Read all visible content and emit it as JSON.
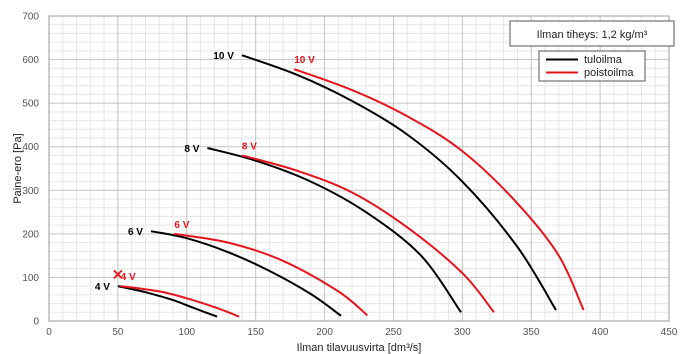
{
  "chart_data": {
    "type": "line",
    "xlabel": "Ilman tilavuusvirta [dm³/s]",
    "ylabel": "Paine-ero [Pa]",
    "xlim": [
      0,
      450
    ],
    "ylim": [
      0,
      700
    ],
    "xticks": [
      "0",
      "50",
      "100",
      "150",
      "200",
      "250",
      "300",
      "350",
      "400",
      "450"
    ],
    "yticks": [
      "0",
      "100",
      "200",
      "300",
      "400",
      "500",
      "600",
      "700"
    ],
    "grid": true,
    "info_box": "Ilman tiheys: 1,2 kg/m³",
    "legend_position": "top-right",
    "legend": [
      {
        "label": "tuloilma",
        "color": "#000000"
      },
      {
        "label": "poistoilma",
        "color": "#e8141c"
      }
    ],
    "series": [
      {
        "name": "tuloilma",
        "color": "#000000",
        "curves": [
          {
            "label": "4 V",
            "points": [
              [
                50,
                80
              ],
              [
                70,
                66
              ],
              [
                90,
                48
              ],
              [
                105,
                30
              ],
              [
                122,
                10
              ]
            ]
          },
          {
            "label": "6 V",
            "points": [
              [
                74,
                206
              ],
              [
                100,
                190
              ],
              [
                130,
                158
              ],
              [
                160,
                115
              ],
              [
                190,
                62
              ],
              [
                212,
                12
              ]
            ]
          },
          {
            "label": "8 V",
            "points": [
              [
                115,
                397
              ],
              [
                150,
                368
              ],
              [
                190,
                320
              ],
              [
                230,
                250
              ],
              [
                270,
                150
              ],
              [
                299,
                20
              ]
            ]
          },
          {
            "label": "10 V",
            "points": [
              [
                140,
                610
              ],
              [
                180,
                565
              ],
              [
                220,
                505
              ],
              [
                260,
                428
              ],
              [
                300,
                320
              ],
              [
                340,
                170
              ],
              [
                368,
                25
              ]
            ]
          }
        ]
      },
      {
        "name": "poistoilma",
        "color": "#e8141c",
        "curves": [
          {
            "label": "4 V",
            "points": [
              [
                52,
                80
              ],
              [
                80,
                68
              ],
              [
                100,
                52
              ],
              [
                120,
                32
              ],
              [
                138,
                10
              ]
            ]
          },
          {
            "label": "6 V",
            "points": [
              [
                91,
                200
              ],
              [
                130,
                180
              ],
              [
                170,
                138
              ],
              [
                210,
                68
              ],
              [
                231,
                13
              ]
            ]
          },
          {
            "label": "8 V",
            "points": [
              [
                140,
                380
              ],
              [
                180,
                345
              ],
              [
                220,
                295
              ],
              [
                260,
                215
              ],
              [
                300,
                110
              ],
              [
                323,
                20
              ]
            ]
          },
          {
            "label": "10 V",
            "points": [
              [
                178,
                578
              ],
              [
                220,
                530
              ],
              [
                260,
                470
              ],
              [
                300,
                390
              ],
              [
                340,
                270
              ],
              [
                370,
                150
              ],
              [
                388,
                25
              ]
            ]
          }
        ]
      }
    ]
  }
}
